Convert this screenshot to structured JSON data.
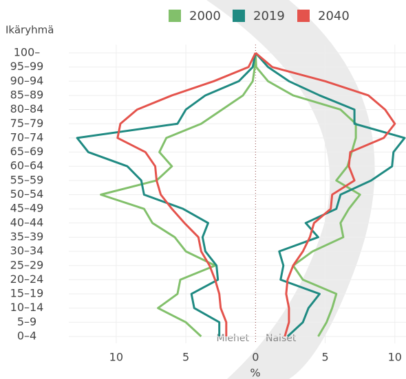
{
  "chart_data": {
    "type": "pyramid-line",
    "ylabel": "Ikäryhmä",
    "xlabel": "%",
    "annotations": [
      "Miehet",
      "Naiset"
    ],
    "categories": [
      "0–4",
      "5–9",
      "10–14",
      "15–19",
      "20–24",
      "25–29",
      "30–34",
      "35–39",
      "40–44",
      "45–49",
      "50–54",
      "55–59",
      "60–64",
      "65–69",
      "70–74",
      "75–79",
      "80–84",
      "85–89",
      "90–94",
      "95–99",
      "100–"
    ],
    "series": [
      {
        "name": "2000",
        "color": "#82c06b",
        "men": [
          3.9,
          5.0,
          7.0,
          5.6,
          5.4,
          2.9,
          5.0,
          5.8,
          7.4,
          8.0,
          11.1,
          7.1,
          6.0,
          6.9,
          6.4,
          3.9,
          2.4,
          0.9,
          0.2,
          0.05,
          0
        ],
        "women": [
          4.5,
          5.1,
          5.5,
          5.8,
          3.4,
          2.7,
          4.1,
          6.3,
          6.1,
          6.7,
          7.5,
          5.8,
          6.6,
          6.9,
          7.2,
          7.2,
          6.1,
          2.7,
          0.9,
          0.05,
          0
        ]
      },
      {
        "name": "2019",
        "color": "#1f8a82",
        "men": [
          2.6,
          2.6,
          4.4,
          4.6,
          2.7,
          2.8,
          3.6,
          3.8,
          3.4,
          5.2,
          8.0,
          8.2,
          9.2,
          12.0,
          12.8,
          5.6,
          5.0,
          3.6,
          1.2,
          0.2,
          0
        ],
        "women": [
          2.3,
          3.4,
          3.8,
          4.6,
          1.8,
          2.0,
          1.7,
          4.5,
          3.6,
          5.8,
          6.1,
          8.3,
          9.8,
          9.9,
          10.7,
          7.1,
          7.1,
          4.6,
          2.4,
          0.9,
          0
        ]
      },
      {
        "name": "2040",
        "color": "#e4534c",
        "men": [
          2.1,
          2.1,
          2.5,
          2.6,
          2.9,
          3.3,
          3.9,
          4.1,
          5.1,
          6.0,
          6.8,
          7.1,
          7.2,
          7.9,
          9.9,
          9.7,
          8.5,
          6.0,
          3.0,
          0.5,
          0
        ],
        "women": [
          2.1,
          2.4,
          2.4,
          2.2,
          2.3,
          2.7,
          3.4,
          3.9,
          4.2,
          5.4,
          5.5,
          7.1,
          6.7,
          6.8,
          9.2,
          10.0,
          9.3,
          8.1,
          5.0,
          1.2,
          0
        ]
      }
    ],
    "xlim": [
      -13.4,
      10.8
    ],
    "xticks": [
      {
        "value": -10,
        "label": "10"
      },
      {
        "value": -5,
        "label": "5"
      },
      0,
      5,
      10
    ],
    "grid": true
  }
}
